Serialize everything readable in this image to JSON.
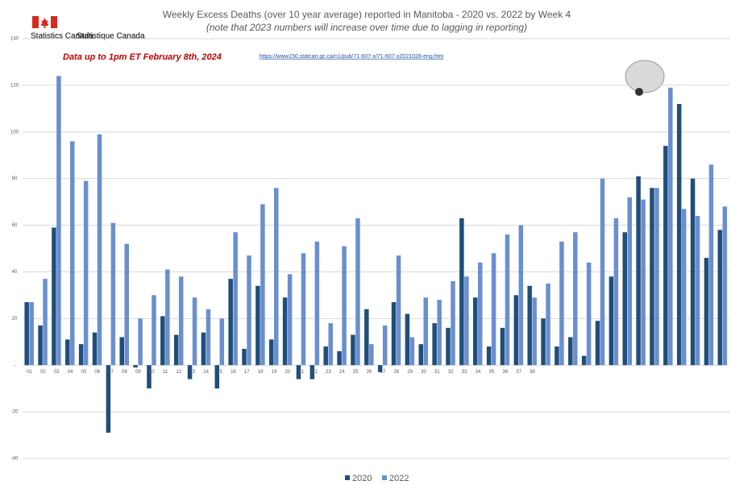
{
  "chart_data": {
    "type": "bar",
    "title": "Weekly Excess Deaths (over 10 year average) reported in Manitoba - 2020 vs. 2022 by Week 4",
    "subtitle": "(note that 2023 numbers will increase over time due to lagging in reporting)",
    "annotations": [
      "Data up to 1pm ET February 8th, 2024",
      "https://www150.statcan.gc.ca/n1/pub/71-607-x/71-607-x2021028-eng.htm",
      "Statistics Canada",
      "Statistique Canada"
    ],
    "categories": [
      "01",
      "02",
      "03",
      "04",
      "05",
      "06",
      "07",
      "08",
      "09",
      "10",
      "11",
      "12",
      "13",
      "14",
      "15",
      "16",
      "17",
      "18",
      "19",
      "20",
      "21",
      "22",
      "23",
      "24",
      "25",
      "26",
      "27",
      "28",
      "29",
      "30",
      "31",
      "32",
      "33",
      "34",
      "35",
      "36",
      "37",
      "38",
      null,
      null,
      null,
      null,
      null,
      null,
      null,
      null,
      null,
      null,
      null,
      null,
      null,
      null
    ],
    "series": [
      {
        "name": "2020",
        "color": "#1f4e79",
        "values": [
          27,
          17,
          59,
          11,
          9,
          14,
          -29,
          12,
          -1,
          -10,
          21,
          13,
          -6,
          14,
          -10,
          37,
          7,
          34,
          11,
          29,
          -6,
          -6,
          8,
          6,
          13,
          24,
          -3,
          27,
          22,
          9,
          18,
          16,
          63,
          29,
          8,
          16,
          30,
          34,
          20,
          8,
          12,
          4,
          19,
          38,
          57,
          81,
          76,
          94,
          112,
          80,
          46,
          58
        ]
      },
      {
        "name": "2022",
        "color": "#6a8fd0",
        "values": [
          27,
          37,
          124,
          96,
          79,
          99,
          61,
          52,
          20,
          30,
          41,
          38,
          29,
          24,
          20,
          57,
          47,
          69,
          76,
          39,
          48,
          53,
          18,
          51,
          63,
          9,
          17,
          47,
          12,
          29,
          28,
          36,
          38,
          44,
          48,
          56,
          60,
          29,
          35,
          53,
          57,
          44,
          80,
          63,
          72,
          71,
          76,
          119,
          67,
          64,
          86,
          68
        ]
      }
    ],
    "ylim": [
      -40,
      140
    ],
    "yticks": [
      -40,
      -20,
      {
        "value": 0,
        "label": "-"
      },
      20,
      40,
      60,
      80,
      100,
      120,
      140
    ],
    "grid": true,
    "legend": "bottom"
  }
}
